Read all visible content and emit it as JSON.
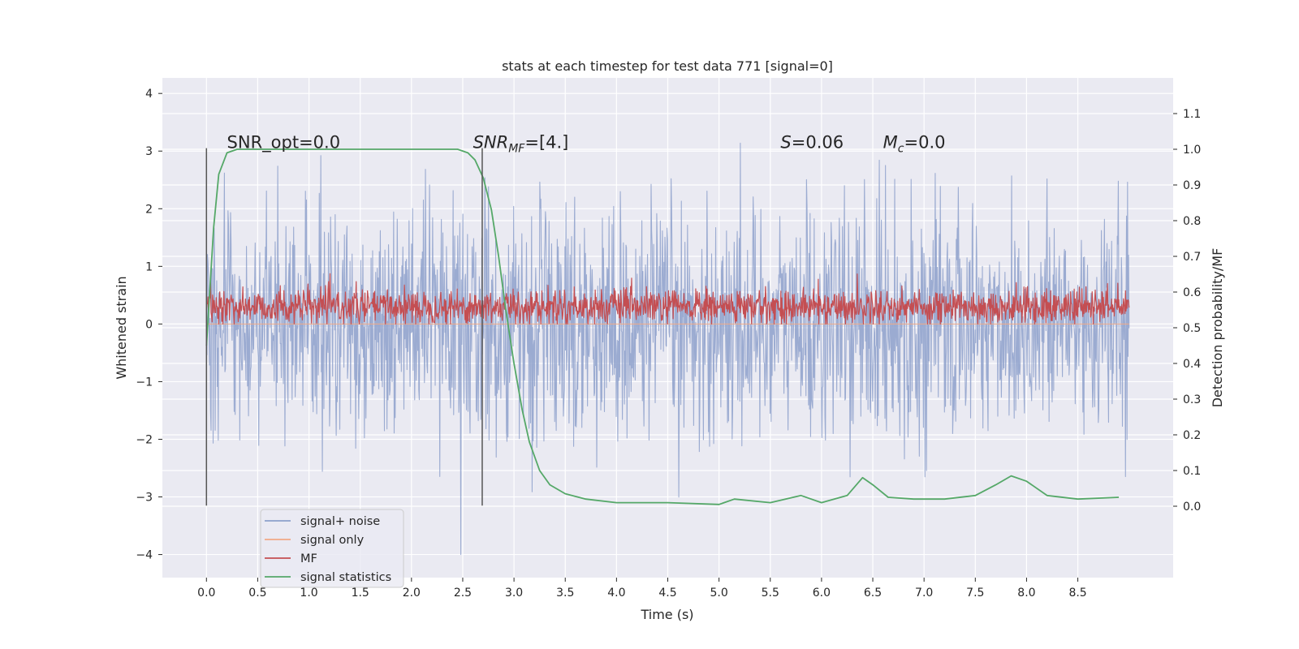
{
  "chart_data": {
    "type": "line",
    "title": "stats at each timestep for test data 771 [signal=0]",
    "xlabel": "Time (s)",
    "ylabel_left": "Whitened strain",
    "ylabel_right": "Detection probability/MF",
    "xlim": [
      -0.43,
      9.43
    ],
    "ylim_left": [
      -4.4,
      4.27
    ],
    "ylim_right": [
      -0.2,
      1.2
    ],
    "x_ticks": [
      "0.0",
      "0.5",
      "1.0",
      "1.5",
      "2.0",
      "2.5",
      "3.0",
      "3.5",
      "4.0",
      "4.5",
      "5.0",
      "5.5",
      "6.0",
      "6.5",
      "7.0",
      "7.5",
      "8.0",
      "8.5"
    ],
    "y_left_ticks": [
      "−4",
      "−3",
      "−2",
      "−1",
      "0",
      "1",
      "2",
      "3",
      "4"
    ],
    "y_right_ticks": [
      "0.0",
      "0.1",
      "0.2",
      "0.3",
      "0.4",
      "0.5",
      "0.6",
      "0.7",
      "0.8",
      "0.9",
      "1.0",
      "1.1"
    ],
    "grid": true,
    "legend_position": "lower-left",
    "annotations": [
      {
        "text": "SNR_opt=0.0",
        "x": 0.2,
        "y": 3.05
      },
      {
        "text": "SNR_MF=[4.]",
        "x": 2.6,
        "y": 3.05
      },
      {
        "text": "S=0.06",
        "x": 5.6,
        "y": 3.05
      },
      {
        "text": "M_c=0.0",
        "x": 6.6,
        "y": 3.05
      }
    ],
    "vertical_lines": [
      {
        "x": 0.0,
        "ymin": -3.15,
        "ymax": 3.05
      },
      {
        "x": 2.69,
        "ymin": -3.15,
        "ymax": 3.05
      }
    ],
    "series": [
      {
        "name": "signal+ noise",
        "axis": "left",
        "color": "#8da0cb",
        "description_values": "white-noise strain, approx. range -4 to 4, typically within ±2",
        "x_range": [
          0.0,
          9.0
        ],
        "n_points": 1800,
        "mean": 0.0,
        "std": 1.0
      },
      {
        "name": "signal only",
        "axis": "left",
        "color": "#f0a986",
        "x": [
          0.0,
          9.0
        ],
        "y": [
          0.0,
          0.0
        ]
      },
      {
        "name": "MF",
        "axis": "left",
        "color": "#c44e52",
        "x_range": [
          0.0,
          9.0
        ],
        "n_points": 1800,
        "mean": 0.3,
        "std": 0.15
      },
      {
        "name": "signal statistics",
        "axis": "right",
        "color": "#55a868",
        "x": [
          0.0,
          0.07,
          0.12,
          0.2,
          0.3,
          0.5,
          1.0,
          1.5,
          2.0,
          2.3,
          2.45,
          2.55,
          2.62,
          2.7,
          2.78,
          2.85,
          2.92,
          3.0,
          3.08,
          3.15,
          3.25,
          3.35,
          3.5,
          3.7,
          4.0,
          4.5,
          5.0,
          5.15,
          5.5,
          5.8,
          6.0,
          6.25,
          6.4,
          6.5,
          6.65,
          6.9,
          7.2,
          7.5,
          7.7,
          7.85,
          8.0,
          8.2,
          8.5,
          8.9
        ],
        "y": [
          0.45,
          0.78,
          0.93,
          0.99,
          1.0,
          1.0,
          1.0,
          1.0,
          1.0,
          1.0,
          1.0,
          0.99,
          0.97,
          0.92,
          0.83,
          0.7,
          0.55,
          0.4,
          0.27,
          0.18,
          0.1,
          0.06,
          0.035,
          0.02,
          0.01,
          0.01,
          0.005,
          0.02,
          0.01,
          0.03,
          0.01,
          0.03,
          0.08,
          0.06,
          0.025,
          0.02,
          0.02,
          0.03,
          0.06,
          0.085,
          0.07,
          0.03,
          0.02,
          0.025
        ]
      }
    ]
  }
}
